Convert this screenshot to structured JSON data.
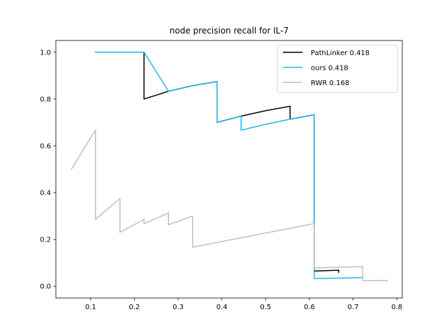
{
  "chart_data": {
    "type": "line",
    "title": "node precision recall for IL-7",
    "xlabel": "",
    "ylabel": "",
    "xlim": [
      0.0205,
      0.8125
    ],
    "ylim": [
      -0.05,
      1.05
    ],
    "xticks": [
      0.1,
      0.2,
      0.3,
      0.4,
      0.5,
      0.6,
      0.7,
      0.8
    ],
    "xtick_labels": [
      "0.1",
      "0.2",
      "0.3",
      "0.4",
      "0.5",
      "0.6",
      "0.7",
      "0.8"
    ],
    "yticks": [
      0.0,
      0.2,
      0.4,
      0.6,
      0.8,
      1.0
    ],
    "ytick_labels": [
      "0.0",
      "0.2",
      "0.4",
      "0.6",
      "0.8",
      "1.0"
    ],
    "grid": false,
    "legend_position": "upper right",
    "series": [
      {
        "name": "PathLinker 0.418",
        "color": "#000000",
        "points": [
          [
            0.111,
            1.0
          ],
          [
            0.222,
            1.0
          ],
          [
            0.222,
            0.8
          ],
          [
            0.278,
            0.833
          ],
          [
            0.333,
            0.857
          ],
          [
            0.389,
            0.875
          ],
          [
            0.389,
            0.7
          ],
          [
            0.444,
            0.727
          ],
          [
            0.5,
            0.75
          ],
          [
            0.556,
            0.769
          ],
          [
            0.556,
            0.714
          ],
          [
            0.611,
            0.733
          ],
          [
            0.611,
            0.065
          ],
          [
            0.667,
            0.069
          ],
          [
            0.667,
            0.06
          ]
        ]
      },
      {
        "name": "ours 0.418",
        "color": "#1ab8f0",
        "points": [
          [
            0.111,
            1.0
          ],
          [
            0.222,
            1.0
          ],
          [
            0.278,
            0.833
          ],
          [
            0.333,
            0.857
          ],
          [
            0.389,
            0.875
          ],
          [
            0.389,
            0.7
          ],
          [
            0.444,
            0.727
          ],
          [
            0.444,
            0.667
          ],
          [
            0.5,
            0.692
          ],
          [
            0.556,
            0.714
          ],
          [
            0.611,
            0.733
          ],
          [
            0.611,
            0.033
          ],
          [
            0.667,
            0.035
          ],
          [
            0.722,
            0.037
          ]
        ]
      },
      {
        "name": "RWR 0.168",
        "color": "#bfbfbf",
        "points": [
          [
            0.056,
            0.5
          ],
          [
            0.111,
            0.667
          ],
          [
            0.111,
            0.286
          ],
          [
            0.167,
            0.375
          ],
          [
            0.167,
            0.231
          ],
          [
            0.222,
            0.286
          ],
          [
            0.222,
            0.267
          ],
          [
            0.278,
            0.313
          ],
          [
            0.278,
            0.263
          ],
          [
            0.333,
            0.3
          ],
          [
            0.333,
            0.167
          ],
          [
            0.611,
            0.268
          ],
          [
            0.611,
            0.078
          ],
          [
            0.667,
            0.081
          ],
          [
            0.722,
            0.084
          ],
          [
            0.722,
            0.024
          ],
          [
            0.778,
            0.025
          ],
          [
            0.778,
            0.021
          ]
        ]
      }
    ]
  }
}
